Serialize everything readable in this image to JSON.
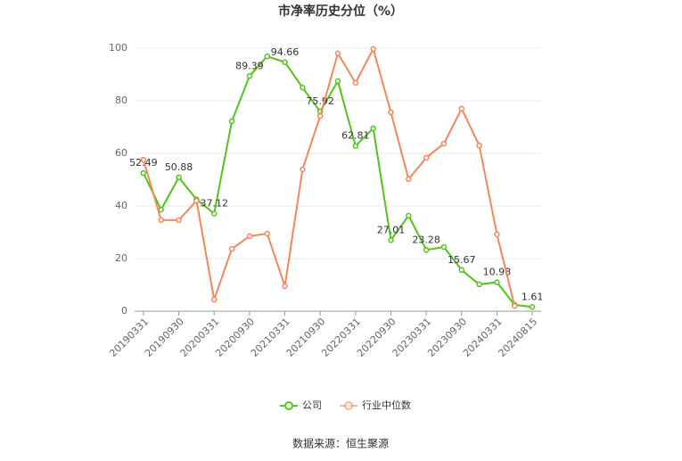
{
  "chart_data": {
    "type": "line",
    "title": "市净率历史分位（%）",
    "categories": [
      "20190331",
      null,
      "20190930",
      null,
      "20200331",
      null,
      "20200930",
      null,
      "20210331",
      null,
      "20210930",
      null,
      "20220331",
      null,
      "20220930",
      null,
      "20230331",
      null,
      "20230930",
      null,
      "20240331",
      null,
      "20240815"
    ],
    "series": [
      {
        "name": "公司",
        "color": "#52c41a",
        "values": [
          52.49,
          38.6,
          50.88,
          42.5,
          37.12,
          72.2,
          89.39,
          96.9,
          94.66,
          85,
          75.92,
          87.5,
          62.81,
          69.5,
          27.01,
          36.3,
          23.28,
          24.4,
          15.67,
          10.2,
          10.98,
          2.4,
          1.61
        ],
        "value_labels": [
          "52.49",
          null,
          "50.88",
          null,
          "37.12",
          null,
          "89.39",
          null,
          "94.66",
          null,
          "75.92",
          null,
          "62.81",
          null,
          "27.01",
          null,
          "23.28",
          null,
          "15.67",
          null,
          "10.98",
          null,
          "1.61"
        ]
      },
      {
        "name": "行业中位数",
        "color": "#f4875a",
        "values": [
          57.6,
          34.6,
          34.6,
          42,
          4.4,
          23.7,
          28.5,
          29.5,
          9.5,
          53.9,
          74.2,
          98,
          86.8,
          99.7,
          75.6,
          50.2,
          58.3,
          63.7,
          77,
          63,
          29.2,
          2,
          null
        ]
      }
    ],
    "ylim": [
      0,
      100
    ],
    "yticks": [
      0,
      20,
      40,
      60,
      80,
      100
    ],
    "grid": true,
    "source": "数据来源：恒生聚源"
  }
}
